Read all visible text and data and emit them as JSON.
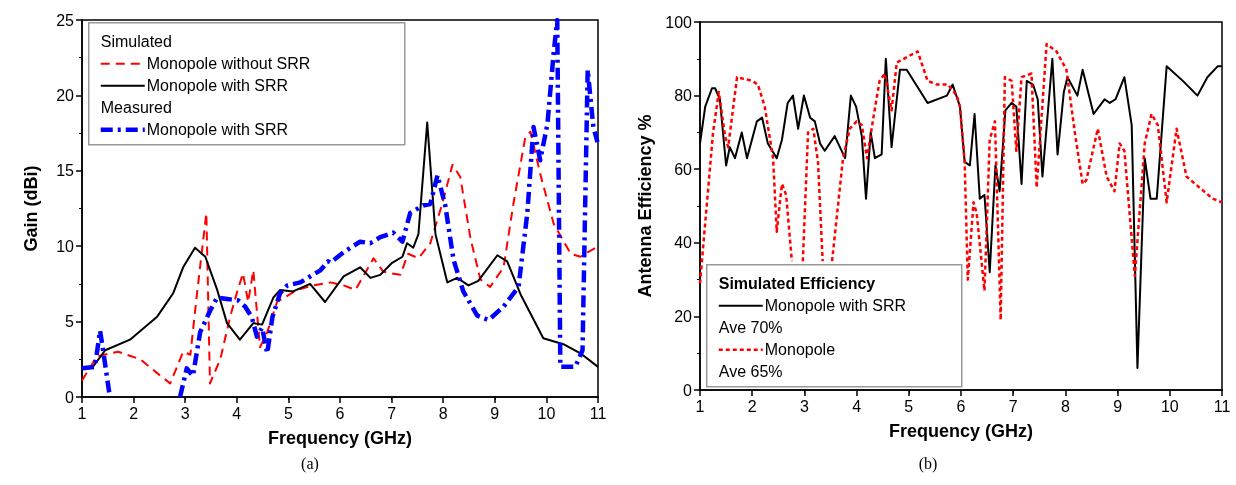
{
  "chart_data": [
    {
      "type": "line",
      "title": "(a)",
      "xlabel": "Frequency (GHz)",
      "ylabel": "Gain (dBi)",
      "annotations": [
        "Simulated",
        "Measured"
      ],
      "legend": "top left",
      "xlim": [
        1,
        11
      ],
      "xticks": [
        1,
        2,
        3,
        4,
        5,
        6,
        7,
        8,
        9,
        10,
        11
      ],
      "ylim": [
        0,
        25
      ],
      "yticks": [
        0,
        5,
        10,
        15,
        20,
        25
      ],
      "grid": false,
      "marker": "none",
      "series": [
        {
          "name": "Monopole without SRR",
          "color": "#ff0000",
          "line_style": "dashed",
          "x": [
            1.0,
            1.29,
            1.7,
            2.13,
            2.45,
            2.71,
            2.96,
            3.1,
            3.23,
            3.41,
            3.48,
            3.68,
            3.87,
            4.0,
            4.12,
            4.22,
            4.32,
            4.45,
            4.59,
            4.78,
            5.17,
            5.48,
            5.81,
            6.07,
            6.3,
            6.65,
            6.84,
            7.17,
            7.32,
            7.52,
            7.75,
            7.98,
            8.18,
            8.33,
            8.53,
            8.72,
            8.91,
            9.17,
            9.36,
            9.59,
            9.69,
            9.88,
            10.14,
            10.47,
            10.66,
            11.0
          ],
          "values": [
            1.1,
            2.7,
            3.0,
            2.5,
            1.6,
            0.9,
            3.0,
            2.8,
            6.9,
            12.2,
            0.9,
            2.5,
            5.3,
            6.9,
            8.2,
            6.3,
            8.4,
            3.3,
            4.3,
            6.3,
            7.1,
            7.4,
            7.6,
            7.4,
            7.1,
            9.2,
            8.3,
            8.1,
            9.5,
            9.2,
            10.2,
            12.8,
            15.4,
            14.6,
            10.5,
            7.8,
            7.3,
            8.6,
            12.8,
            17.2,
            17.6,
            14.8,
            11.5,
            9.5,
            9.3,
            10.0
          ]
        },
        {
          "name": "Monopole with SRR",
          "color": "#000000",
          "line_style": "solid",
          "x": [
            1.0,
            1.21,
            1.45,
            1.93,
            2.45,
            2.77,
            2.96,
            3.19,
            3.39,
            3.62,
            3.81,
            4.06,
            4.32,
            4.49,
            4.71,
            4.84,
            5.09,
            5.42,
            5.71,
            6.07,
            6.39,
            6.59,
            6.78,
            7.01,
            7.21,
            7.3,
            7.42,
            7.52,
            7.69,
            7.85,
            8.08,
            8.27,
            8.49,
            8.68,
            9.05,
            9.24,
            9.5,
            9.94,
            10.33,
            10.66,
            11.0
          ],
          "values": [
            1.9,
            2.0,
            3.1,
            3.8,
            5.3,
            6.9,
            8.6,
            9.9,
            9.3,
            7.1,
            4.9,
            3.8,
            4.9,
            4.8,
            6.6,
            7.1,
            7.0,
            7.5,
            6.3,
            8.0,
            8.6,
            7.9,
            8.1,
            8.9,
            9.3,
            10.2,
            9.9,
            10.8,
            18.2,
            10.8,
            7.6,
            7.9,
            7.4,
            7.7,
            9.4,
            9.0,
            6.8,
            3.9,
            3.5,
            2.9,
            2.0
          ]
        },
        {
          "name": "Monopole with SRR",
          "color": "#0000ff",
          "line_style": "dashdot",
          "x": [
            1.0,
            1.25,
            1.35,
            1.4,
            1.54,
            2.2,
            2.9,
            3.03,
            3.15,
            3.29,
            3.48,
            3.62,
            3.81,
            4.03,
            4.16,
            4.29,
            4.39,
            4.49,
            4.59,
            4.69,
            4.84,
            4.98,
            5.23,
            5.62,
            5.77,
            5.81,
            6.07,
            6.39,
            6.59,
            6.78,
            7.03,
            7.21,
            7.36,
            7.61,
            7.75,
            7.89,
            8.04,
            8.2,
            8.39,
            8.66,
            8.88,
            9.17,
            9.46,
            9.63,
            9.75,
            9.88,
            10.02,
            10.14,
            10.21,
            10.27,
            10.56,
            10.7,
            10.8,
            10.91,
            10.99
          ],
          "values": [
            1.9,
            2.0,
            4.4,
            3.3,
            0,
            null,
            0,
            1.9,
            1.4,
            4.3,
            5.7,
            6.6,
            6.5,
            6.4,
            6.0,
            5.3,
            4.0,
            4.6,
            2.9,
            5.3,
            6.9,
            7.4,
            7.6,
            8.4,
            9.0,
            8.9,
            9.6,
            10.3,
            10.2,
            10.6,
            10.9,
            10.3,
            12.2,
            12.7,
            12.8,
            14.7,
            12.7,
            9.1,
            7.0,
            5.4,
            5.1,
            6.0,
            7.3,
            12.2,
            17.9,
            15.7,
            18.1,
            22.8,
            25,
            2.0,
            2.0,
            3.1,
            21.7,
            17.9,
            16.9
          ]
        }
      ]
    },
    {
      "type": "line",
      "title": "(b)",
      "xlabel": "Frequency (GHz)",
      "ylabel": "Antenna Efficiency %",
      "legend_title": "Simulated Efficiency",
      "annotations": [
        "Ave 70%",
        "Ave 65%"
      ],
      "legend": "bottom left",
      "xlim": [
        1,
        11
      ],
      "xticks": [
        1,
        2,
        3,
        4,
        5,
        6,
        7,
        8,
        9,
        10,
        11
      ],
      "ylim": [
        0,
        100
      ],
      "yticks": [
        0,
        20,
        40,
        60,
        80,
        100
      ],
      "grid": false,
      "marker": "none",
      "series": [
        {
          "name": "Monopole with SRR",
          "color": "#000000",
          "line_style": "solid",
          "x": [
            1.0,
            1.1,
            1.23,
            1.29,
            1.38,
            1.5,
            1.57,
            1.67,
            1.8,
            1.9,
            2.09,
            2.19,
            2.3,
            2.47,
            2.57,
            2.68,
            2.78,
            2.88,
            2.99,
            3.11,
            3.2,
            3.3,
            3.39,
            3.58,
            3.78,
            3.89,
            3.99,
            4.1,
            4.18,
            4.27,
            4.35,
            4.48,
            4.56,
            4.67,
            4.83,
            4.96,
            5.36,
            5.73,
            5.84,
            5.98,
            6.07,
            6.17,
            6.26,
            6.36,
            6.45,
            6.55,
            6.66,
            6.74,
            6.85,
            6.97,
            7.06,
            7.16,
            7.26,
            7.38,
            7.47,
            7.56,
            7.75,
            7.85,
            7.97,
            8.04,
            8.23,
            8.33,
            8.54,
            8.75,
            8.85,
            8.96,
            9.13,
            9.27,
            9.38,
            9.52,
            9.63,
            9.75,
            9.94,
            10.25,
            10.53,
            10.72,
            10.92,
            11.0
          ],
          "values": [
            67,
            77,
            82,
            82,
            79,
            61,
            66,
            63,
            70,
            63,
            73,
            74,
            67,
            63,
            68,
            78,
            80,
            71,
            80,
            74,
            73,
            67,
            65,
            69,
            63,
            80,
            77,
            69,
            52,
            70,
            63,
            64,
            90,
            66,
            87,
            87,
            78,
            80,
            83,
            77,
            62,
            61,
            75,
            52,
            53,
            32,
            61,
            54,
            76,
            78,
            77,
            56,
            84,
            83,
            79,
            58,
            90,
            64,
            81,
            85,
            80,
            87,
            75,
            79,
            78,
            79,
            85,
            72,
            6,
            63,
            52,
            52,
            88,
            84,
            80,
            85,
            88,
            88
          ]
        },
        {
          "name": "Monopole",
          "color": "#ff0000",
          "line_style": "dotted",
          "x": [
            1.0,
            1.25,
            1.36,
            1.48,
            1.54,
            1.71,
            2.0,
            2.11,
            2.24,
            2.4,
            2.47,
            2.57,
            2.65,
            2.76,
            2.86,
            2.97,
            3.07,
            3.17,
            3.26,
            3.35,
            3.44,
            3.53,
            3.74,
            3.87,
            4.0,
            4.1,
            4.2,
            4.31,
            4.44,
            4.54,
            4.67,
            4.77,
            5.17,
            5.36,
            5.54,
            5.75,
            5.92,
            5.98,
            6.07,
            6.13,
            6.24,
            6.3,
            6.45,
            6.55,
            6.65,
            6.76,
            6.84,
            6.97,
            7.06,
            7.16,
            7.35,
            7.45,
            7.64,
            7.83,
            8.02,
            8.18,
            8.33,
            8.4,
            8.62,
            8.79,
            8.94,
            9.04,
            9.13,
            9.33,
            9.52,
            9.65,
            9.77,
            9.94,
            10.13,
            10.32,
            10.82,
            11.0
          ],
          "values": [
            29,
            70,
            81,
            69,
            66,
            85,
            84,
            83,
            77,
            63,
            43,
            56,
            53,
            35,
            null,
            35,
            70,
            71,
            62,
            35,
            null,
            35,
            63,
            71,
            73,
            72,
            63,
            73,
            84,
            86,
            76,
            89,
            92,
            84,
            83,
            83,
            80,
            77,
            62,
            30,
            51,
            48,
            27,
            68,
            73,
            19,
            85,
            84,
            65,
            85,
            86,
            55,
            94,
            92,
            87,
            70,
            56,
            57,
            71,
            58,
            54,
            67,
            65,
            31,
            67,
            75,
            72,
            51,
            71,
            58,
            52,
            51
          ]
        }
      ]
    }
  ]
}
